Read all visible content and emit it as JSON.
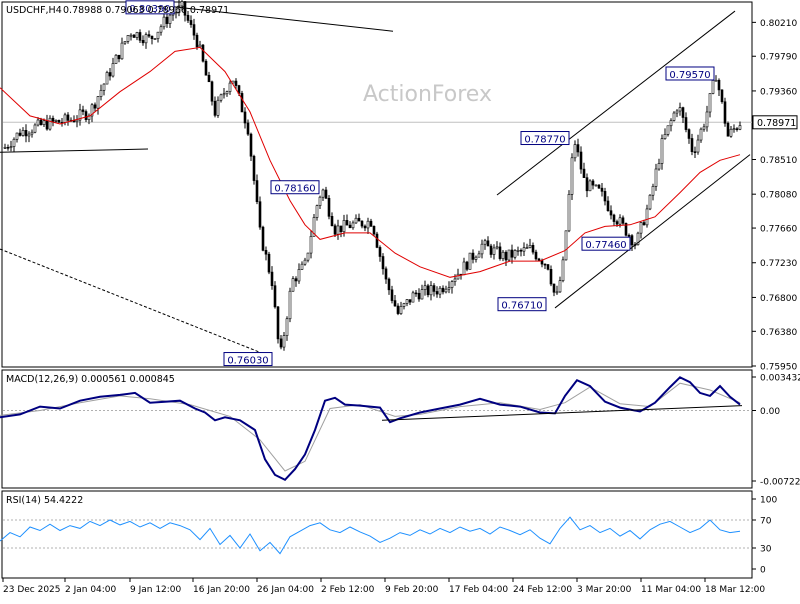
{
  "header": {
    "symbol": "USDCHF,H4",
    "ohlc": "0.78988 0.79063 0.78966 0.78971"
  },
  "watermark": "ActionForex",
  "colors": {
    "candle": "#000000",
    "ma": "#e00000",
    "macd": "#000080",
    "signal": "#a0a0a0",
    "rsi": "#1e90ff",
    "trendline": "#000000",
    "price_label_bg": "#ffffff",
    "label_border": "#000080"
  },
  "chart_data": [
    {
      "type": "candlestick",
      "panel": "price",
      "title": "USDCHF,H4",
      "x": [
        "23 Dec 2025",
        "2 Jan 04:00",
        "9 Jan 12:00",
        "16 Jan 20:00",
        "26 Jan 04:00",
        "2 Feb 12:00",
        "9 Feb 20:00",
        "17 Feb 04:00",
        "24 Feb 12:00",
        "3 Mar 20:00",
        "11 Mar 04:00",
        "18 Mar 12:00"
      ],
      "yticks": [
        "0.80210",
        "0.79790",
        "0.79360",
        "0.78940",
        "0.78510",
        "0.78080",
        "0.77660",
        "0.77230",
        "0.76800",
        "0.76380",
        "0.75950"
      ],
      "ylim": [
        0.7595,
        0.8045
      ],
      "current_price": "0.78971",
      "current_price_value": 0.78971,
      "close_path": [
        [
          0,
          0.786
        ],
        [
          20,
          0.7885
        ],
        [
          45,
          0.7895
        ],
        [
          70,
          0.79
        ],
        [
          90,
          0.791
        ],
        [
          110,
          0.796
        ],
        [
          130,
          0.801
        ],
        [
          150,
          0.8
        ],
        [
          170,
          0.803
        ],
        [
          182,
          0.8039
        ],
        [
          198,
          0.7995
        ],
        [
          215,
          0.791
        ],
        [
          232,
          0.7955
        ],
        [
          248,
          0.789
        ],
        [
          260,
          0.776
        ],
        [
          272,
          0.77
        ],
        [
          280,
          0.7603
        ],
        [
          292,
          0.77
        ],
        [
          305,
          0.772
        ],
        [
          316,
          0.779
        ],
        [
          322,
          0.7816
        ],
        [
          335,
          0.7765
        ],
        [
          352,
          0.777
        ],
        [
          372,
          0.7775
        ],
        [
          386,
          0.77
        ],
        [
          398,
          0.766
        ],
        [
          415,
          0.7685
        ],
        [
          440,
          0.769
        ],
        [
          462,
          0.7715
        ],
        [
          482,
          0.7745
        ],
        [
          505,
          0.773
        ],
        [
          530,
          0.774
        ],
        [
          548,
          0.772
        ],
        [
          556,
          0.7675
        ],
        [
          563,
          0.772
        ],
        [
          574,
          0.7877
        ],
        [
          585,
          0.782
        ],
        [
          600,
          0.781
        ],
        [
          615,
          0.778
        ],
        [
          628,
          0.776
        ],
        [
          636,
          0.7746
        ],
        [
          650,
          0.78
        ],
        [
          662,
          0.787
        ],
        [
          678,
          0.792
        ],
        [
          693,
          0.786
        ],
        [
          705,
          0.79
        ],
        [
          716,
          0.7957
        ],
        [
          728,
          0.788
        ],
        [
          740,
          0.7897
        ]
      ],
      "ma_path": [
        [
          0,
          0.794
        ],
        [
          30,
          0.7905
        ],
        [
          60,
          0.7895
        ],
        [
          90,
          0.7905
        ],
        [
          120,
          0.7935
        ],
        [
          150,
          0.796
        ],
        [
          175,
          0.7985
        ],
        [
          200,
          0.799
        ],
        [
          225,
          0.796
        ],
        [
          250,
          0.791
        ],
        [
          270,
          0.785
        ],
        [
          290,
          0.78
        ],
        [
          305,
          0.777
        ],
        [
          320,
          0.7752
        ],
        [
          345,
          0.776
        ],
        [
          370,
          0.776
        ],
        [
          395,
          0.7735
        ],
        [
          420,
          0.7718
        ],
        [
          450,
          0.7705
        ],
        [
          480,
          0.7712
        ],
        [
          510,
          0.7725
        ],
        [
          540,
          0.7725
        ],
        [
          565,
          0.7738
        ],
        [
          585,
          0.776
        ],
        [
          605,
          0.7768
        ],
        [
          630,
          0.777
        ],
        [
          655,
          0.778
        ],
        [
          680,
          0.781
        ],
        [
          700,
          0.7835
        ],
        [
          720,
          0.785
        ],
        [
          740,
          0.7857
        ]
      ],
      "price_labels": [
        {
          "text": "0.80390",
          "x": 150,
          "y": 0.8039
        },
        {
          "text": "0.78160",
          "x": 295,
          "y": 0.7816
        },
        {
          "text": "0.76030",
          "x": 248,
          "y": 0.7603
        },
        {
          "text": "0.78770",
          "x": 545,
          "y": 0.7877
        },
        {
          "text": "0.77460",
          "x": 606,
          "y": 0.7746
        },
        {
          "text": "0.76710",
          "x": 522,
          "y": 0.7671
        },
        {
          "text": "0.79570",
          "x": 690,
          "y": 0.7957
        }
      ],
      "trendlines": [
        {
          "x1": 140,
          "y1": 0.8045,
          "x2": 393,
          "y2": 0.801,
          "style": "solid"
        },
        {
          "x1": 0,
          "y1": 0.786,
          "x2": 148,
          "y2": 0.7864,
          "style": "solid"
        },
        {
          "x1": 0,
          "y1": 0.774,
          "x2": 268,
          "y2": 0.7608,
          "style": "dashed"
        },
        {
          "x1": 497,
          "y1": 0.7807,
          "x2": 735,
          "y2": 0.8035,
          "style": "solid"
        },
        {
          "x1": 555,
          "y1": 0.7667,
          "x2": 750,
          "y2": 0.7857,
          "style": "solid"
        }
      ]
    },
    {
      "type": "line",
      "panel": "macd",
      "title": "MACD(12,26,9) 0.000561 0.000845",
      "yticks": [
        "0.003432",
        "0.00",
        "-0.007223"
      ],
      "ylim": [
        -0.007223,
        0.003432
      ],
      "series": [
        {
          "name": "MACD",
          "points": [
            [
              0,
              -0.0007
            ],
            [
              20,
              -0.0004
            ],
            [
              40,
              0.0004
            ],
            [
              60,
              0.0002
            ],
            [
              80,
              0.001
            ],
            [
              100,
              0.0014
            ],
            [
              120,
              0.0016
            ],
            [
              135,
              0.0018
            ],
            [
              150,
              0.0008
            ],
            [
              165,
              0.0009
            ],
            [
              180,
              0.001
            ],
            [
              195,
              0.0002
            ],
            [
              205,
              -0.0002
            ],
            [
              215,
              -0.001
            ],
            [
              225,
              -0.0007
            ],
            [
              240,
              -0.001
            ],
            [
              255,
              -0.002
            ],
            [
              265,
              -0.005
            ],
            [
              275,
              -0.0066
            ],
            [
              285,
              -0.0071
            ],
            [
              295,
              -0.006
            ],
            [
              305,
              -0.0045
            ],
            [
              315,
              -0.002
            ],
            [
              325,
              0.001
            ],
            [
              335,
              0.0013
            ],
            [
              345,
              0.0006
            ],
            [
              360,
              0.0005
            ],
            [
              380,
              0.0003
            ],
            [
              390,
              -0.0012
            ],
            [
              400,
              -0.0008
            ],
            [
              420,
              -0.0002
            ],
            [
              440,
              0.0002
            ],
            [
              460,
              0.0006
            ],
            [
              480,
              0.0012
            ],
            [
              500,
              0.0006
            ],
            [
              520,
              0.0004
            ],
            [
              540,
              -0.0002
            ],
            [
              555,
              -0.0003
            ],
            [
              565,
              0.0015
            ],
            [
              577,
              0.0031
            ],
            [
              590,
              0.0025
            ],
            [
              605,
              0.0009
            ],
            [
              620,
              0.0003
            ],
            [
              640,
              -0.0001
            ],
            [
              655,
              0.0008
            ],
            [
              670,
              0.0024
            ],
            [
              680,
              0.0034
            ],
            [
              690,
              0.0029
            ],
            [
              700,
              0.0018
            ],
            [
              710,
              0.0015
            ],
            [
              720,
              0.0025
            ],
            [
              730,
              0.0014
            ],
            [
              740,
              0.0006
            ]
          ]
        },
        {
          "name": "Signal",
          "points": [
            [
              0,
              -0.0005
            ],
            [
              40,
              0.0
            ],
            [
              80,
              0.0008
            ],
            [
              120,
              0.0015
            ],
            [
              150,
              0.0012
            ],
            [
              190,
              0.0006
            ],
            [
              230,
              -0.0006
            ],
            [
              260,
              -0.003
            ],
            [
              285,
              -0.0062
            ],
            [
              305,
              -0.0052
            ],
            [
              330,
              0.0002
            ],
            [
              360,
              0.0006
            ],
            [
              395,
              -0.0006
            ],
            [
              420,
              -0.0004
            ],
            [
              460,
              0.0004
            ],
            [
              500,
              0.0008
            ],
            [
              540,
              0.0001
            ],
            [
              565,
              0.0008
            ],
            [
              590,
              0.0024
            ],
            [
              620,
              0.0007
            ],
            [
              650,
              0.0004
            ],
            [
              680,
              0.0028
            ],
            [
              710,
              0.0021
            ],
            [
              740,
              0.0008
            ]
          ]
        }
      ],
      "trendline": {
        "x1": 382,
        "y1": -0.001,
        "x2": 742,
        "y2": 0.0005
      }
    },
    {
      "type": "line",
      "panel": "rsi",
      "title": "RSI(14) 54.4222",
      "yticks": [
        "100",
        "70",
        "30",
        "0"
      ],
      "ylim": [
        0,
        100
      ],
      "levels": [
        70,
        30
      ],
      "series": [
        {
          "name": "RSI(14)",
          "points": [
            [
              0,
              40
            ],
            [
              10,
              52
            ],
            [
              20,
              46
            ],
            [
              30,
              60
            ],
            [
              40,
              55
            ],
            [
              50,
              64
            ],
            [
              60,
              55
            ],
            [
              70,
              62
            ],
            [
              80,
              58
            ],
            [
              90,
              68
            ],
            [
              100,
              62
            ],
            [
              110,
              70
            ],
            [
              120,
              63
            ],
            [
              130,
              68
            ],
            [
              140,
              60
            ],
            [
              150,
              66
            ],
            [
              160,
              58
            ],
            [
              170,
              66
            ],
            [
              180,
              62
            ],
            [
              190,
              56
            ],
            [
              200,
              42
            ],
            [
              210,
              58
            ],
            [
              220,
              35
            ],
            [
              230,
              48
            ],
            [
              240,
              30
            ],
            [
              250,
              50
            ],
            [
              260,
              26
            ],
            [
              270,
              38
            ],
            [
              280,
              22
            ],
            [
              290,
              46
            ],
            [
              300,
              54
            ],
            [
              310,
              62
            ],
            [
              320,
              66
            ],
            [
              330,
              56
            ],
            [
              340,
              52
            ],
            [
              350,
              60
            ],
            [
              360,
              53
            ],
            [
              370,
              47
            ],
            [
              380,
              38
            ],
            [
              390,
              44
            ],
            [
              400,
              52
            ],
            [
              410,
              48
            ],
            [
              420,
              56
            ],
            [
              430,
              50
            ],
            [
              440,
              58
            ],
            [
              450,
              52
            ],
            [
              460,
              60
            ],
            [
              470,
              54
            ],
            [
              480,
              58
            ],
            [
              490,
              50
            ],
            [
              500,
              60
            ],
            [
              510,
              55
            ],
            [
              520,
              49
            ],
            [
              530,
              56
            ],
            [
              540,
              44
            ],
            [
              550,
              36
            ],
            [
              560,
              58
            ],
            [
              570,
              74
            ],
            [
              580,
              56
            ],
            [
              590,
              62
            ],
            [
              600,
              52
            ],
            [
              610,
              58
            ],
            [
              620,
              47
            ],
            [
              630,
              55
            ],
            [
              640,
              43
            ],
            [
              650,
              56
            ],
            [
              660,
              64
            ],
            [
              670,
              68
            ],
            [
              680,
              60
            ],
            [
              690,
              52
            ],
            [
              700,
              58
            ],
            [
              710,
              70
            ],
            [
              720,
              56
            ],
            [
              730,
              52
            ],
            [
              740,
              54
            ]
          ]
        }
      ]
    }
  ]
}
